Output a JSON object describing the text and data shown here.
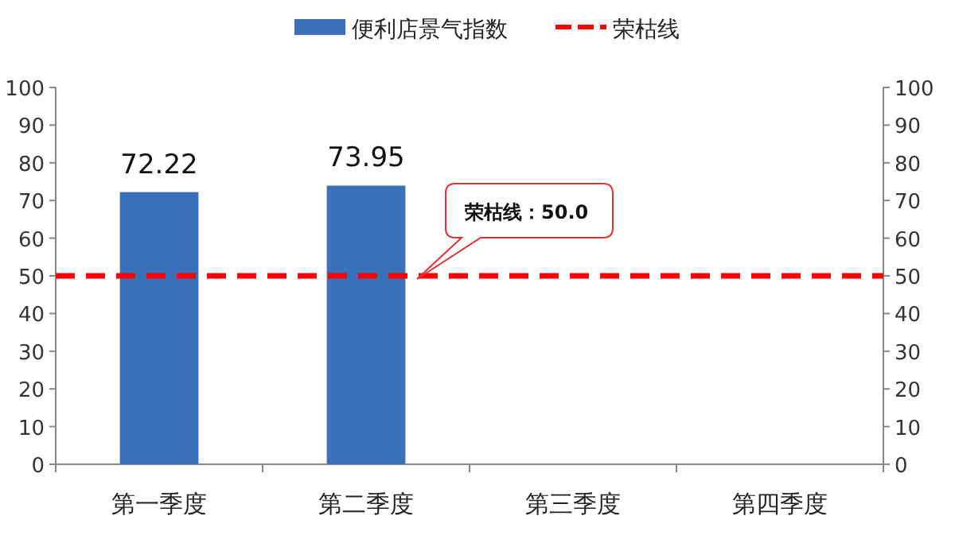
{
  "chart_data": {
    "type": "bar",
    "categories": [
      "第一季度",
      "第二季度",
      "第三季度",
      "第四季度"
    ],
    "series": [
      {
        "name": "便利店景气指数",
        "color": "#3a70b8",
        "values": [
          72.22,
          73.95,
          null,
          null
        ]
      }
    ],
    "ylim": [
      0,
      100
    ],
    "yticks": [
      0,
      10,
      20,
      30,
      40,
      50,
      60,
      70,
      80,
      90,
      100
    ],
    "y2lim": [
      0,
      100
    ],
    "y2ticks": [
      0,
      10,
      20,
      30,
      40,
      50,
      60,
      70,
      80,
      90,
      100
    ],
    "data_labels": true,
    "legend": "top",
    "ref_lines": [
      {
        "axis": "y",
        "value": 50,
        "label": "荣枯线",
        "color": "#ff0000",
        "line_style": "dashed"
      }
    ],
    "annotations": [
      {
        "text": "荣枯线：50.0",
        "y": 50
      }
    ]
  }
}
